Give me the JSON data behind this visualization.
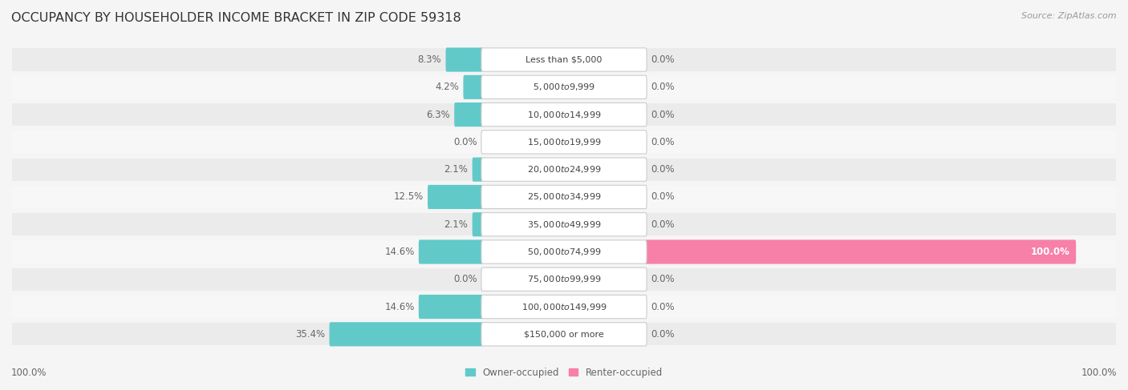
{
  "title": "OCCUPANCY BY HOUSEHOLDER INCOME BRACKET IN ZIP CODE 59318",
  "source": "Source: ZipAtlas.com",
  "categories": [
    "Less than $5,000",
    "$5,000 to $9,999",
    "$10,000 to $14,999",
    "$15,000 to $19,999",
    "$20,000 to $24,999",
    "$25,000 to $34,999",
    "$35,000 to $49,999",
    "$50,000 to $74,999",
    "$75,000 to $99,999",
    "$100,000 to $149,999",
    "$150,000 or more"
  ],
  "owner_pct": [
    8.3,
    4.2,
    6.3,
    0.0,
    2.1,
    12.5,
    2.1,
    14.6,
    0.0,
    14.6,
    35.4
  ],
  "renter_pct": [
    0.0,
    0.0,
    0.0,
    0.0,
    0.0,
    0.0,
    0.0,
    100.0,
    0.0,
    0.0,
    0.0
  ],
  "owner_color": "#62c9c9",
  "renter_color": "#f780a8",
  "row_bg_even": "#ebebeb",
  "row_bg_odd": "#f7f7f7",
  "text_color": "#666666",
  "label_color": "#444444",
  "title_color": "#333333",
  "source_color": "#999999",
  "legend_owner": "Owner-occupied",
  "legend_renter": "Renter-occupied",
  "max_pct": 100.0,
  "left_label_pct": "100.0%",
  "right_label_pct": "100.0%",
  "title_fontsize": 11.5,
  "label_fontsize": 8.5,
  "cat_fontsize": 8.0,
  "source_fontsize": 8.0,
  "bg_color": "#f5f5f5"
}
